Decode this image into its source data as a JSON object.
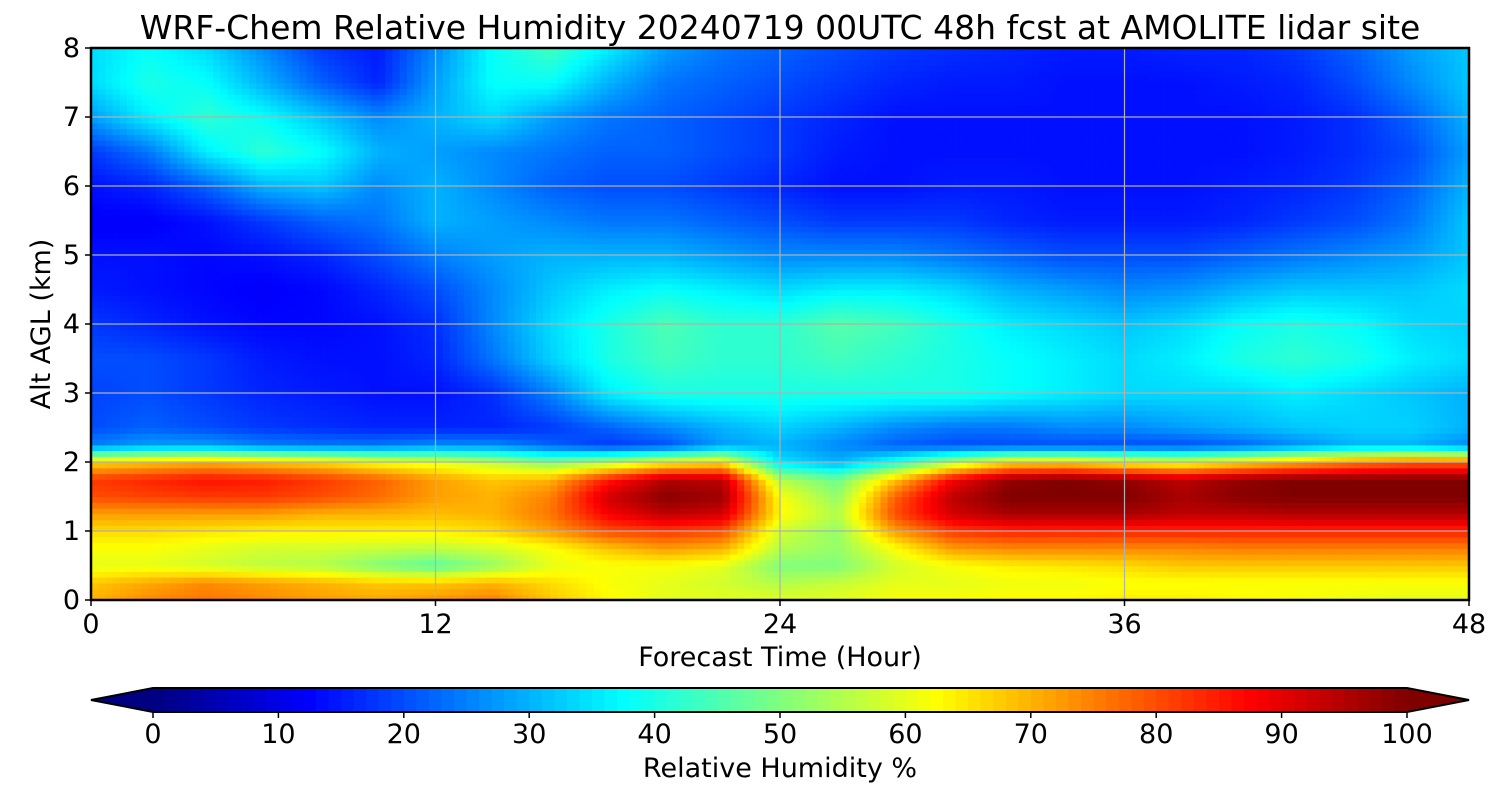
{
  "chart_data": {
    "type": "heatmap",
    "title": "WRF-Chem Relative Humidity 20240719 00UTC 48h fcst at AMOLITE lidar site",
    "xlabel": "Forecast Time (Hour)",
    "ylabel": "Alt AGL (km)",
    "xlim": [
      0,
      48
    ],
    "ylim": [
      0,
      8
    ],
    "xticks": [
      "0",
      "12",
      "24",
      "36",
      "48"
    ],
    "yticks": [
      "0",
      "1",
      "2",
      "3",
      "4",
      "5",
      "6",
      "7",
      "8"
    ],
    "grid": true,
    "colormap": "jet",
    "colorbar": {
      "label": "Relative Humidity %",
      "range": [
        0,
        100
      ],
      "ticks": [
        "0",
        "10",
        "20",
        "30",
        "40",
        "50",
        "60",
        "70",
        "80",
        "90",
        "100"
      ],
      "extend": "both",
      "orientation": "horizontal"
    },
    "x": [
      0,
      2,
      4,
      6,
      8,
      10,
      12,
      14,
      16,
      18,
      20,
      22,
      24,
      26,
      28,
      30,
      32,
      34,
      36,
      38,
      40,
      42,
      44,
      46,
      48
    ],
    "y": [
      0,
      0.25,
      0.5,
      0.75,
      1,
      1.25,
      1.5,
      1.75,
      2,
      2.25,
      2.5,
      3,
      3.5,
      4,
      4.5,
      5,
      5.5,
      6,
      6.5,
      7,
      7.5,
      8
    ],
    "z": [
      [
        70,
        74,
        76,
        74,
        72,
        71,
        73,
        75,
        68,
        63,
        60,
        60,
        60,
        60,
        62,
        62,
        63,
        63,
        64,
        64,
        63,
        62,
        61,
        60,
        60
      ],
      [
        68,
        71,
        74,
        72,
        70,
        68,
        68,
        70,
        66,
        62,
        60,
        58,
        55,
        57,
        60,
        60,
        61,
        61,
        62,
        62,
        62,
        62,
        62,
        62,
        62
      ],
      [
        60,
        60,
        58,
        56,
        55,
        50,
        46,
        52,
        60,
        62,
        62,
        60,
        50,
        50,
        58,
        62,
        64,
        65,
        66,
        68,
        68,
        68,
        68,
        68,
        68
      ],
      [
        62,
        62,
        60,
        58,
        58,
        57,
        56,
        58,
        62,
        68,
        72,
        70,
        55,
        52,
        62,
        72,
        74,
        74,
        74,
        74,
        75,
        75,
        75,
        75,
        75
      ],
      [
        66,
        66,
        65,
        64,
        64,
        64,
        64,
        66,
        72,
        80,
        82,
        80,
        58,
        52,
        72,
        82,
        84,
        84,
        84,
        84,
        84,
        84,
        84,
        84,
        84
      ],
      [
        72,
        72,
        72,
        72,
        70,
        70,
        69,
        70,
        76,
        88,
        94,
        92,
        63,
        55,
        80,
        92,
        96,
        96,
        96,
        94,
        94,
        95,
        95,
        95,
        95
      ],
      [
        80,
        81,
        82,
        82,
        80,
        77,
        72,
        70,
        75,
        92,
        99,
        97,
        62,
        52,
        78,
        94,
        100,
        100,
        100,
        96,
        99,
        100,
        100,
        100,
        100
      ],
      [
        82,
        84,
        86,
        85,
        82,
        78,
        72,
        68,
        70,
        85,
        95,
        94,
        55,
        48,
        68,
        88,
        98,
        100,
        98,
        94,
        98,
        100,
        100,
        100,
        100
      ],
      [
        66,
        68,
        70,
        68,
        66,
        62,
        60,
        56,
        50,
        55,
        62,
        65,
        35,
        30,
        40,
        55,
        65,
        66,
        62,
        60,
        65,
        70,
        75,
        78,
        78
      ],
      [
        25,
        28,
        28,
        25,
        24,
        24,
        26,
        26,
        22,
        18,
        20,
        28,
        30,
        26,
        22,
        20,
        20,
        20,
        20,
        20,
        22,
        26,
        30,
        30,
        26
      ],
      [
        20,
        22,
        20,
        18,
        17,
        16,
        16,
        16,
        18,
        22,
        26,
        30,
        33,
        30,
        26,
        24,
        24,
        26,
        26,
        28,
        30,
        32,
        33,
        33,
        30
      ],
      [
        19,
        20,
        18,
        16,
        15,
        14,
        14,
        17,
        25,
        36,
        40,
        40,
        40,
        40,
        40,
        40,
        38,
        36,
        34,
        34,
        34,
        36,
        34,
        32,
        30
      ],
      [
        20,
        20,
        18,
        15,
        14,
        14,
        16,
        24,
        33,
        40,
        44,
        42,
        42,
        44,
        42,
        40,
        38,
        36,
        34,
        36,
        40,
        42,
        40,
        36,
        34
      ],
      [
        18,
        16,
        14,
        13,
        13,
        14,
        17,
        26,
        34,
        40,
        45,
        42,
        42,
        46,
        44,
        40,
        36,
        34,
        32,
        34,
        38,
        40,
        38,
        34,
        33
      ],
      [
        15,
        14,
        13,
        12,
        13,
        16,
        20,
        26,
        32,
        36,
        38,
        36,
        34,
        36,
        36,
        34,
        30,
        28,
        26,
        27,
        30,
        32,
        32,
        32,
        34
      ],
      [
        14,
        14,
        13,
        14,
        16,
        20,
        25,
        28,
        30,
        30,
        30,
        28,
        26,
        26,
        26,
        24,
        22,
        20,
        20,
        20,
        22,
        24,
        26,
        28,
        32
      ],
      [
        12,
        12,
        14,
        18,
        22,
        24,
        30,
        28,
        26,
        24,
        24,
        22,
        20,
        18,
        18,
        18,
        16,
        15,
        15,
        15,
        16,
        18,
        20,
        24,
        32
      ],
      [
        14,
        16,
        22,
        30,
        32,
        26,
        30,
        26,
        22,
        20,
        20,
        18,
        16,
        14,
        14,
        15,
        15,
        14,
        14,
        14,
        15,
        16,
        18,
        22,
        30
      ],
      [
        18,
        24,
        36,
        42,
        38,
        30,
        28,
        26,
        24,
        22,
        22,
        20,
        18,
        15,
        14,
        14,
        14,
        14,
        14,
        14,
        14,
        15,
        17,
        20,
        28
      ],
      [
        28,
        36,
        42,
        38,
        32,
        26,
        30,
        34,
        28,
        24,
        22,
        20,
        18,
        16,
        14,
        14,
        14,
        14,
        14,
        14,
        14,
        15,
        17,
        22,
        30
      ],
      [
        34,
        40,
        38,
        30,
        22,
        16,
        28,
        38,
        38,
        30,
        24,
        22,
        20,
        18,
        16,
        15,
        15,
        14,
        14,
        14,
        15,
        16,
        20,
        26,
        32
      ],
      [
        34,
        38,
        34,
        26,
        18,
        15,
        26,
        38,
        44,
        36,
        28,
        24,
        22,
        20,
        18,
        17,
        16,
        15,
        15,
        16,
        16,
        18,
        22,
        28,
        32
      ]
    ]
  }
}
